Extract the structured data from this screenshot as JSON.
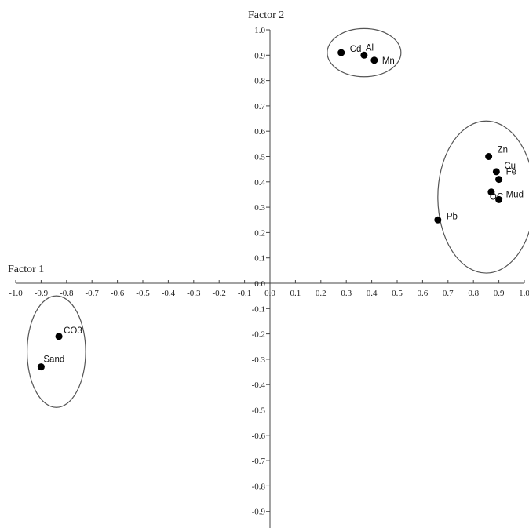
{
  "chart_data": {
    "type": "scatter",
    "xlabel": "Factor 1",
    "ylabel": "Factor 2",
    "xlim": [
      -1.0,
      1.0
    ],
    "ylim": [
      -1.0,
      1.0
    ],
    "x_ticks": [
      "-1.0",
      "-0.9",
      "-0.8",
      "-0.7",
      "-0.6",
      "-0.5",
      "-0.4",
      "-0.3",
      "-0.2",
      "-0.1",
      "0.0",
      "0.1",
      "0.2",
      "0.3",
      "0.4",
      "0.5",
      "0.6",
      "0.7",
      "0.8",
      "0.9",
      "1.0"
    ],
    "y_ticks": [
      "1.0",
      "0.9",
      "0.8",
      "0.7",
      "0.6",
      "0.5",
      "0.4",
      "0.3",
      "0.2",
      "0.1",
      "0.0",
      "-0.1",
      "-0.2",
      "-0.3",
      "-0.4",
      "-0.5",
      "-0.6",
      "-0.7",
      "-0.8",
      "-0.9"
    ],
    "grid": false,
    "points": [
      {
        "label": "Cd",
        "x": 0.28,
        "y": 0.91
      },
      {
        "label": "Al",
        "x": 0.37,
        "y": 0.9
      },
      {
        "label": "Mn",
        "x": 0.41,
        "y": 0.88
      },
      {
        "label": "Zn",
        "x": 0.86,
        "y": 0.5
      },
      {
        "label": "Cu",
        "x": 0.89,
        "y": 0.44
      },
      {
        "label": "Fe",
        "x": 0.9,
        "y": 0.41
      },
      {
        "label": "OC",
        "x": 0.87,
        "y": 0.36
      },
      {
        "label": "Mud",
        "x": 0.9,
        "y": 0.33
      },
      {
        "label": "Pb",
        "x": 0.66,
        "y": 0.25
      },
      {
        "label": "CO3",
        "x": -0.83,
        "y": -0.21
      },
      {
        "label": "Sand",
        "x": -0.9,
        "y": -0.33
      }
    ],
    "clusters": [
      {
        "members": [
          "Cd",
          "Al",
          "Mn"
        ],
        "cx": 0.37,
        "cy": 0.91,
        "rx": 0.145,
        "ry": 0.095
      },
      {
        "members": [
          "Zn",
          "Cu",
          "Fe",
          "OC",
          "Mud",
          "Pb"
        ],
        "cx": 0.85,
        "cy": 0.34,
        "rx": 0.19,
        "ry": 0.3
      },
      {
        "members": [
          "CO3",
          "Sand"
        ],
        "cx": -0.84,
        "cy": -0.27,
        "rx": 0.115,
        "ry": 0.22
      }
    ]
  }
}
